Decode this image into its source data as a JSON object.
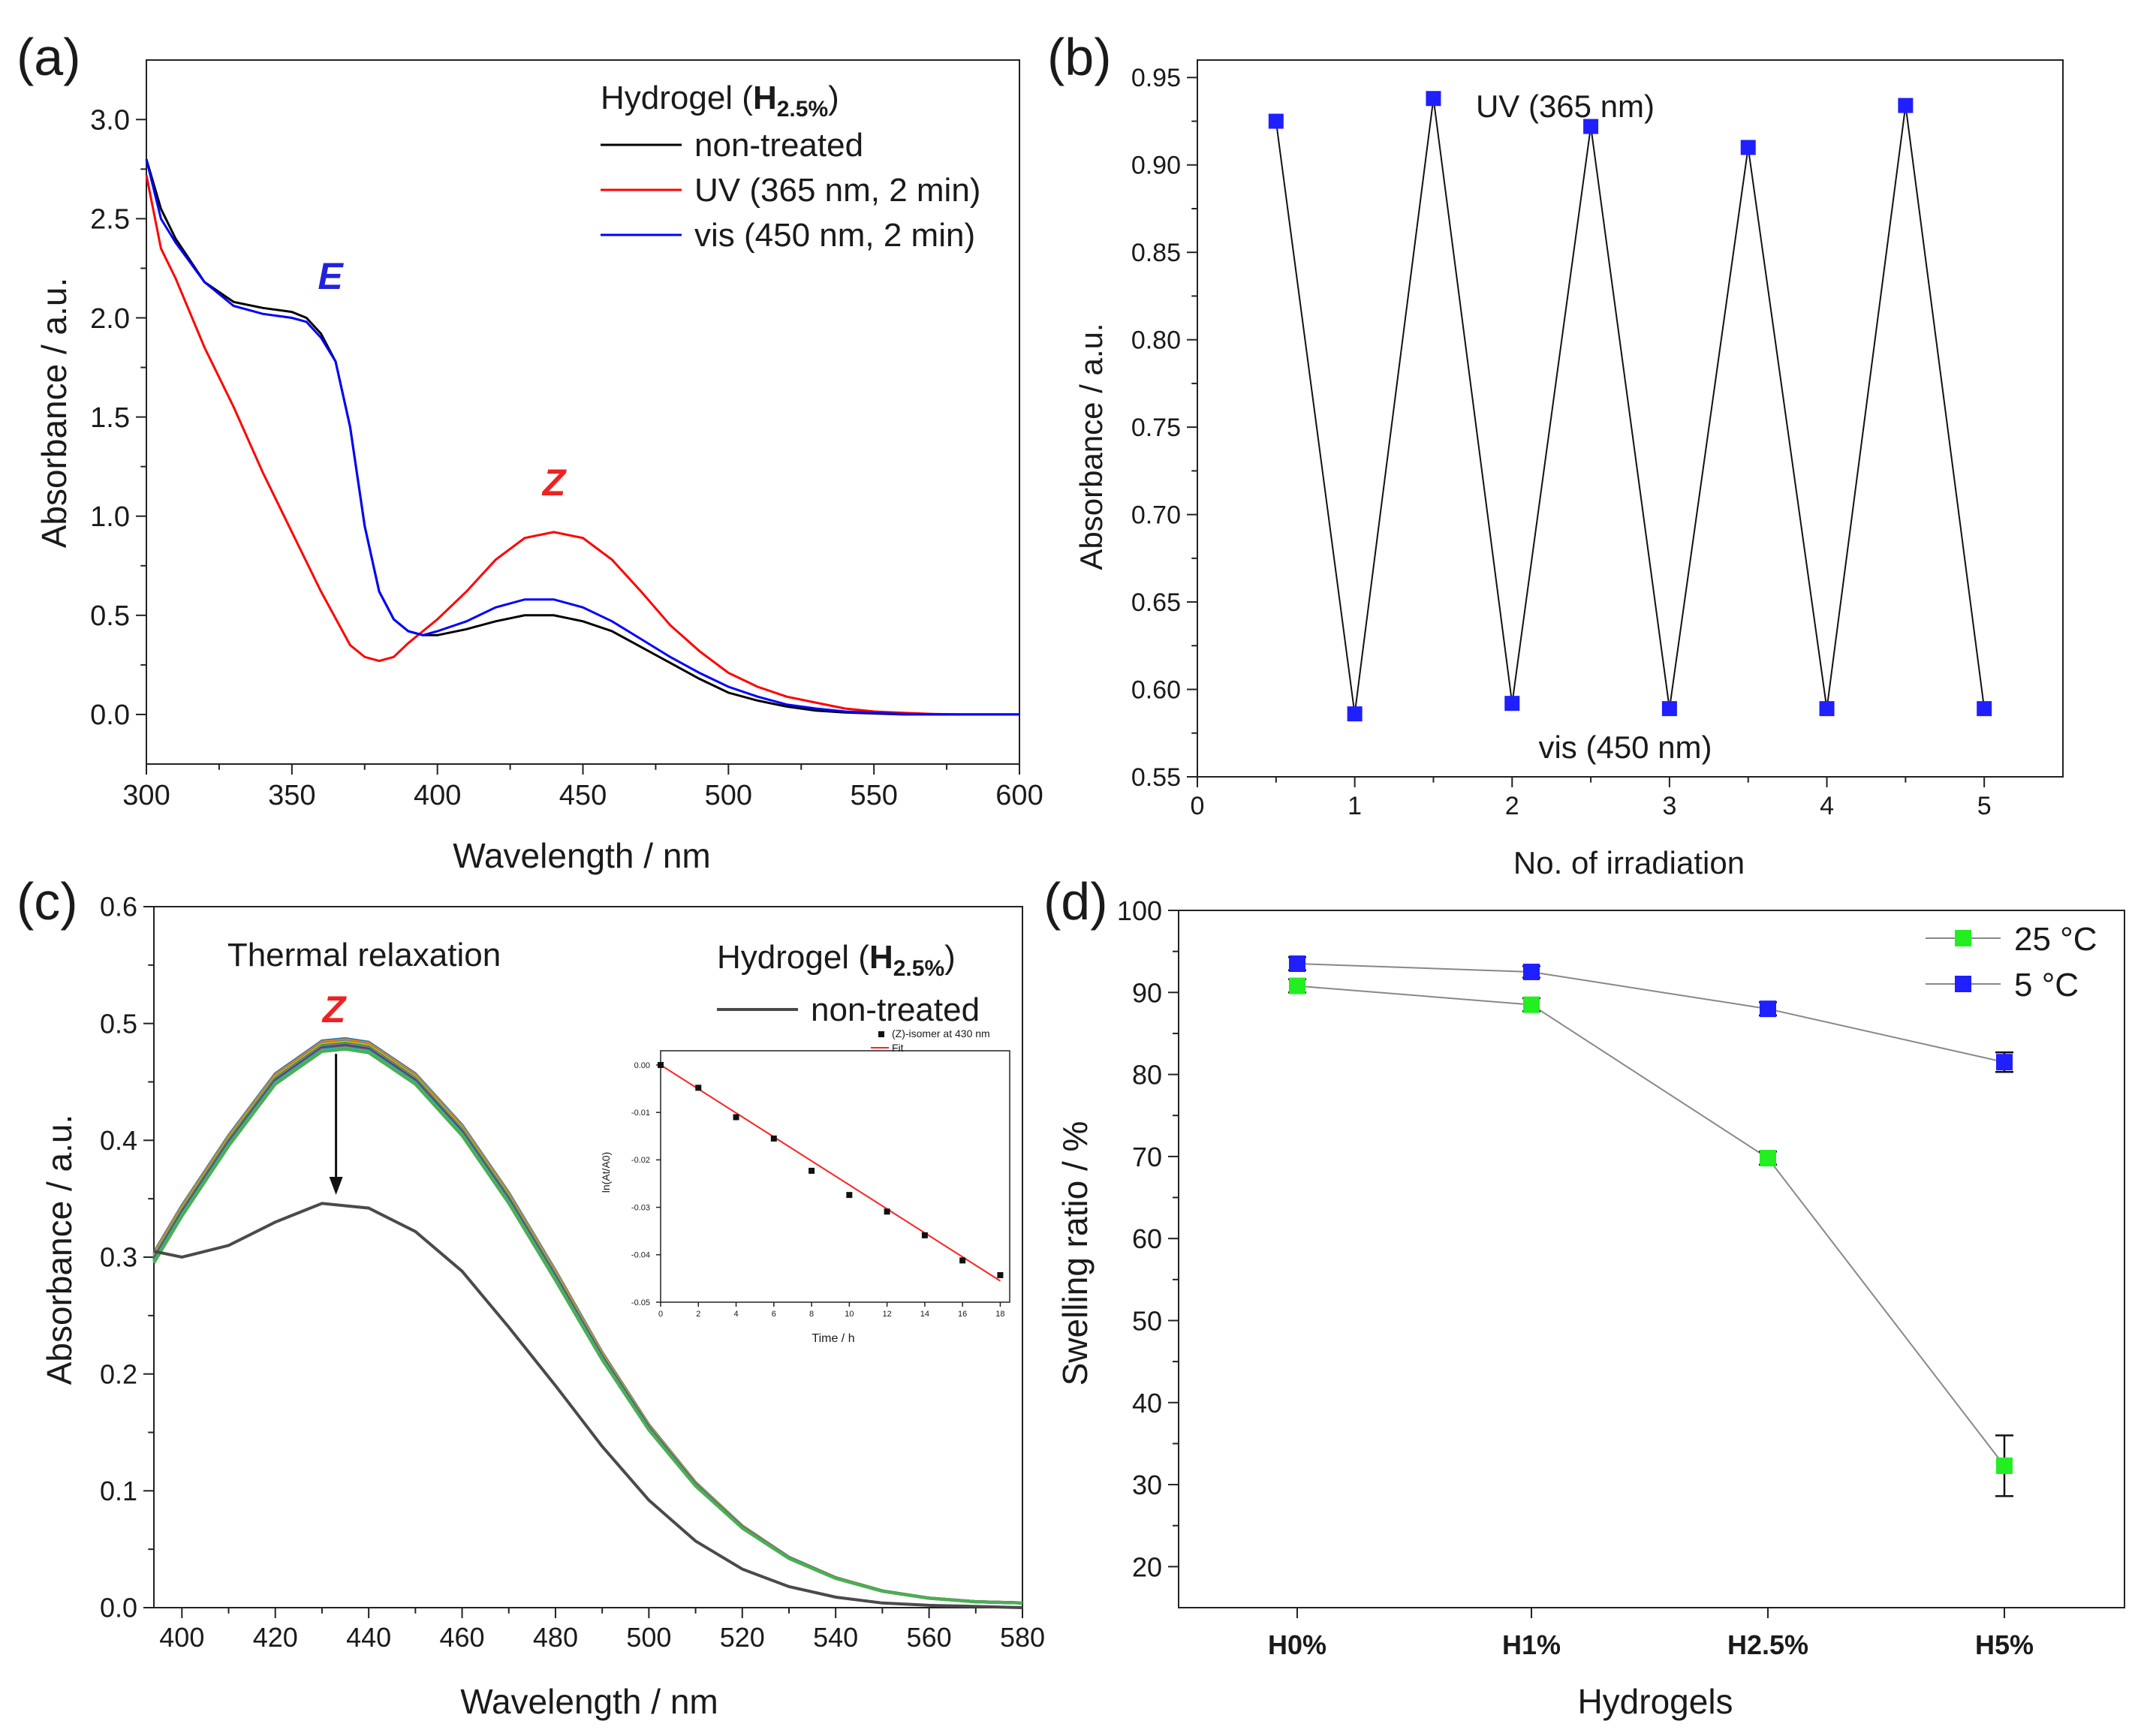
{
  "chart_data": [
    {
      "panel": "(a)",
      "type": "line",
      "xlabel": "Wavelength / nm",
      "ylabel": "Absorbance / a.u.",
      "xlim": [
        300,
        600
      ],
      "ylim": [
        -0.25,
        3.3
      ],
      "xticks": [
        300,
        350,
        400,
        450,
        500,
        550,
        600
      ],
      "yticks": [
        0.0,
        0.5,
        1.0,
        1.5,
        2.0,
        2.5,
        3.0
      ],
      "legend_title": "Hydrogel (",
      "legend_title_bold": "H",
      "legend_title_sub": "2.5%",
      "legend_title_end": ")",
      "annotations": [
        {
          "text": "E",
          "color": "#2222dd"
        },
        {
          "text": "Z",
          "color": "#ee2222"
        }
      ],
      "series": [
        {
          "name": "non-treated",
          "color": "#000000",
          "x": [
            300,
            305,
            310,
            320,
            330,
            340,
            350,
            355,
            360,
            365,
            370,
            375,
            380,
            385,
            390,
            395,
            400,
            410,
            420,
            430,
            440,
            450,
            460,
            470,
            480,
            490,
            500,
            510,
            520,
            530,
            540,
            550,
            560,
            570,
            580,
            590,
            600
          ],
          "y": [
            2.8,
            2.55,
            2.4,
            2.18,
            2.08,
            2.05,
            2.03,
            2.0,
            1.92,
            1.78,
            1.45,
            0.95,
            0.62,
            0.48,
            0.42,
            0.4,
            0.4,
            0.43,
            0.47,
            0.5,
            0.5,
            0.47,
            0.42,
            0.34,
            0.26,
            0.18,
            0.11,
            0.07,
            0.04,
            0.02,
            0.01,
            0.005,
            0.0,
            0.0,
            0.0,
            0.0,
            0.0
          ]
        },
        {
          "name": "UV (365 nm, 2 min)",
          "color": "#ff0000",
          "x": [
            300,
            305,
            310,
            320,
            330,
            340,
            350,
            360,
            370,
            375,
            380,
            385,
            390,
            395,
            400,
            410,
            420,
            430,
            440,
            450,
            460,
            470,
            480,
            490,
            500,
            510,
            520,
            530,
            540,
            550,
            560,
            570,
            580,
            590,
            600
          ],
          "y": [
            2.72,
            2.35,
            2.2,
            1.85,
            1.55,
            1.22,
            0.92,
            0.62,
            0.35,
            0.29,
            0.27,
            0.29,
            0.36,
            0.42,
            0.48,
            0.62,
            0.78,
            0.89,
            0.92,
            0.89,
            0.78,
            0.62,
            0.45,
            0.32,
            0.21,
            0.14,
            0.09,
            0.06,
            0.03,
            0.015,
            0.008,
            0.003,
            0.0,
            0.0,
            0.0
          ]
        },
        {
          "name": "vis (450 nm, 2 min)",
          "color": "#0000ff",
          "x": [
            300,
            305,
            310,
            320,
            330,
            340,
            350,
            355,
            360,
            365,
            370,
            375,
            380,
            385,
            390,
            395,
            400,
            410,
            420,
            430,
            440,
            450,
            460,
            470,
            480,
            490,
            500,
            510,
            520,
            530,
            540,
            550,
            560,
            570,
            580,
            590,
            600
          ],
          "y": [
            2.8,
            2.5,
            2.38,
            2.18,
            2.06,
            2.02,
            2.0,
            1.98,
            1.9,
            1.78,
            1.45,
            0.95,
            0.62,
            0.48,
            0.42,
            0.4,
            0.42,
            0.47,
            0.54,
            0.58,
            0.58,
            0.54,
            0.47,
            0.38,
            0.29,
            0.21,
            0.14,
            0.09,
            0.05,
            0.03,
            0.015,
            0.008,
            0.003,
            0.0,
            0.0,
            0.0,
            0.0
          ]
        }
      ]
    },
    {
      "panel": "(b)",
      "type": "line",
      "xlabel": "No. of irradiation",
      "ylabel": "Absorbance / a.u.",
      "xlim": [
        0,
        5.5
      ],
      "ylim": [
        0.55,
        0.96
      ],
      "xticks": [
        0,
        1,
        2,
        3,
        4,
        5
      ],
      "yticks": [
        0.55,
        0.6,
        0.65,
        0.7,
        0.75,
        0.8,
        0.85,
        0.9,
        0.95
      ],
      "annotations": [
        {
          "text": "UV (365 nm)"
        },
        {
          "text": "vis (450 nm)"
        }
      ],
      "series": [
        {
          "name": "absorbance",
          "color": "#1f1fff",
          "x": [
            0.5,
            1,
            1.5,
            2,
            2.5,
            3,
            3.5,
            4,
            4.5,
            5
          ],
          "y": [
            0.925,
            0.586,
            0.938,
            0.592,
            0.922,
            0.589,
            0.91,
            0.589,
            0.934,
            0.589
          ]
        }
      ]
    },
    {
      "panel": "(c)",
      "type": "line",
      "xlabel": "Wavelength / nm",
      "ylabel": "Absorbance / a.u.",
      "xlim": [
        394,
        580
      ],
      "ylim": [
        0.0,
        0.6
      ],
      "xticks": [
        400,
        420,
        440,
        460,
        480,
        500,
        520,
        540,
        560,
        580
      ],
      "yticks": [
        0.0,
        0.1,
        0.2,
        0.3,
        0.4,
        0.5,
        0.6
      ],
      "title": "Thermal relaxation",
      "legend_title": "Hydrogel (",
      "legend_title_bold": "H",
      "legend_title_sub": "2.5%",
      "legend_title_end": ")",
      "legend_entry": "non-treated",
      "annotations": [
        {
          "text": "Z",
          "color": "#ee2222"
        }
      ],
      "relax_x": [
        394,
        400,
        410,
        420,
        430,
        435,
        440,
        450,
        460,
        470,
        480,
        490,
        500,
        510,
        520,
        530,
        540,
        550,
        560,
        570,
        580
      ],
      "relax_base": [
        0.295,
        0.335,
        0.395,
        0.448,
        0.476,
        0.478,
        0.475,
        0.448,
        0.404,
        0.346,
        0.28,
        0.212,
        0.152,
        0.104,
        0.068,
        0.042,
        0.025,
        0.014,
        0.008,
        0.005,
        0.004
      ],
      "relax_colors": [
        "#1f77b4",
        "#ff7f0e",
        "#7f7f7f",
        "#e6b800",
        "#2ca02c",
        "#9467bd",
        "#1f4e79",
        "#8c564b",
        "#17becf",
        "#4caf50"
      ],
      "relax_offsets": [
        0.009,
        0.008,
        0.007,
        0.006,
        0.005,
        0.004,
        0.003,
        0.002,
        0.001,
        0.0
      ],
      "series": [
        {
          "name": "non-treated",
          "color": "#4a4a4a",
          "x": [
            394,
            400,
            410,
            420,
            430,
            440,
            450,
            460,
            470,
            480,
            490,
            500,
            510,
            520,
            530,
            540,
            550,
            560,
            570,
            580
          ],
          "y": [
            0.305,
            0.3,
            0.31,
            0.33,
            0.346,
            0.342,
            0.322,
            0.288,
            0.24,
            0.19,
            0.138,
            0.092,
            0.057,
            0.033,
            0.018,
            0.009,
            0.004,
            0.002,
            0.001,
            0.0
          ]
        }
      ],
      "inset": {
        "type": "scatter",
        "xlabel": "Time / h",
        "ylabel": "ln(At/A0)",
        "xlim": [
          0,
          18.5
        ],
        "ylim": [
          -0.05,
          0.003
        ],
        "xticks": [
          0,
          2,
          4,
          6,
          8,
          10,
          12,
          14,
          16,
          18
        ],
        "yticks": [
          0.0,
          -0.01,
          -0.02,
          -0.03,
          -0.04,
          -0.05
        ],
        "legend": [
          "(Z)-isomer at 430 nm",
          "Fit"
        ],
        "x": [
          0,
          2,
          4,
          6,
          8,
          10,
          12,
          14,
          16,
          18
        ],
        "y": [
          0.0,
          -0.0048,
          -0.011,
          -0.0155,
          -0.0223,
          -0.0274,
          -0.0309,
          -0.0359,
          -0.0412,
          -0.0443
        ],
        "fit": {
          "x": [
            0,
            18
          ],
          "y": [
            0.0,
            -0.0455
          ]
        }
      }
    },
    {
      "panel": "(d)",
      "type": "line",
      "xlabel": "Hydrogels",
      "ylabel": "Swelling ratio / %",
      "categories": [
        "H0%",
        "H1%",
        "H2.5%",
        "H5%"
      ],
      "ylim": [
        15,
        100
      ],
      "yticks": [
        20,
        30,
        40,
        50,
        60,
        70,
        80,
        90,
        100
      ],
      "series": [
        {
          "name": "25 °C",
          "color": "#22ee22",
          "values": [
            90.8,
            88.5,
            69.8,
            32.3
          ],
          "errors": [
            0.8,
            0.8,
            0.8,
            3.7
          ]
        },
        {
          "name": "5 °C",
          "color": "#1f1fff",
          "values": [
            93.5,
            92.5,
            88.0,
            81.5
          ],
          "errors": [
            0.8,
            0.7,
            0.8,
            1.2
          ]
        }
      ]
    }
  ]
}
